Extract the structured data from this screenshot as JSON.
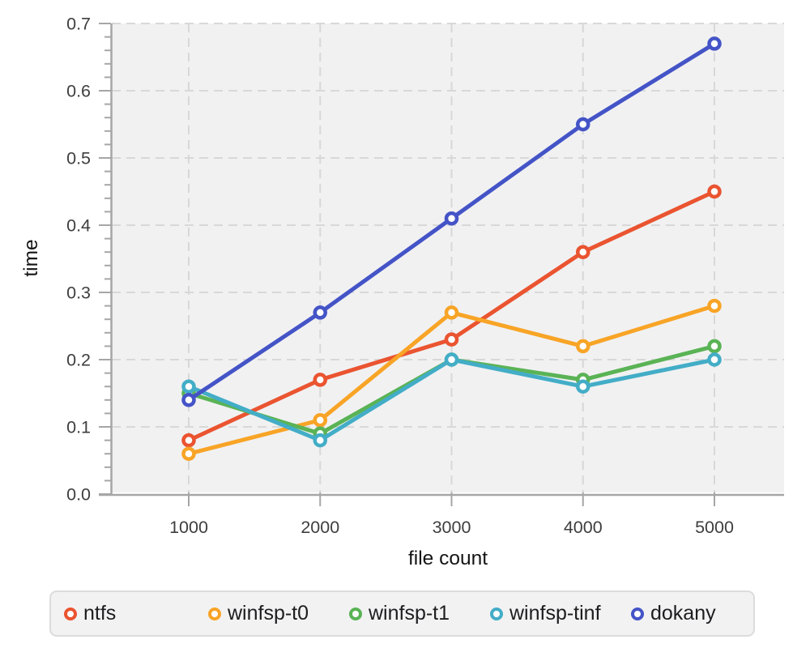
{
  "chart_data": {
    "type": "line",
    "x": [
      1000,
      2000,
      3000,
      4000,
      5000
    ],
    "xtick_labels": [
      "1000",
      "2000",
      "3000",
      "4000",
      "5000"
    ],
    "yticks": [
      0.0,
      0.1,
      0.2,
      0.3,
      0.4,
      0.5,
      0.6,
      0.7
    ],
    "ytick_labels": [
      "0.0",
      "0.1",
      "0.2",
      "0.3",
      "0.4",
      "0.5",
      "0.6",
      "0.7"
    ],
    "y_minor_step": 0.02,
    "ylim": [
      0.0,
      0.7
    ],
    "xlabel": "file count",
    "ylabel": "time",
    "title": "",
    "grid": true,
    "legend_position": "bottom",
    "series": [
      {
        "name": "ntfs",
        "color": "#ea5430",
        "values": [
          0.08,
          0.17,
          0.23,
          0.36,
          0.45
        ]
      },
      {
        "name": "winfsp-t0",
        "color": "#f8a426",
        "values": [
          0.06,
          0.11,
          0.27,
          0.22,
          0.28
        ]
      },
      {
        "name": "winfsp-t1",
        "color": "#5ab355",
        "values": [
          0.15,
          0.09,
          0.2,
          0.17,
          0.22
        ]
      },
      {
        "name": "winfsp-tinf",
        "color": "#43adc7",
        "values": [
          0.16,
          0.08,
          0.2,
          0.16,
          0.2
        ]
      },
      {
        "name": "dokany",
        "color": "#4454c7",
        "values": [
          0.14,
          0.27,
          0.41,
          0.55,
          0.67
        ]
      }
    ],
    "style": {
      "plot_bg": "#f1f1f2",
      "grid_color": "#d8d8d8",
      "axis_color": "#a6a6a6",
      "tick_label_color": "#3e3e3e",
      "axis_title_color": "#141414"
    }
  }
}
